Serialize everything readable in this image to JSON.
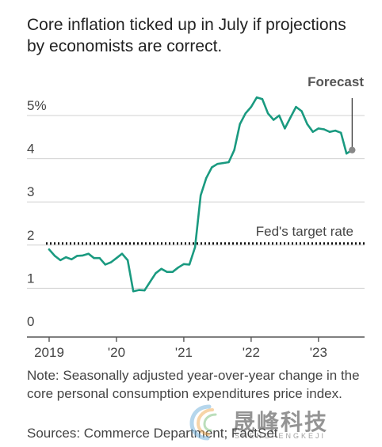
{
  "title": "Core inflation ticked up in July if projections by economists are correct.",
  "note": "Note: Seasonally adjusted year-over-year change in the core personal consumption expenditures price index.",
  "sources": "Sources: Commerce Department; FactSet",
  "watermark": {
    "text": "晟峰科技",
    "subtext": "SHENGFENGKEJI"
  },
  "colors": {
    "line": "#1a9a80",
    "forecast_point": "#888888",
    "target_line": "#111111",
    "grid": "#d0d0d0",
    "axis": "#555555",
    "text": "#444444"
  },
  "chart_data": {
    "type": "line",
    "title": "Core inflation ticked up in July if projections by economists are correct.",
    "xlabel": "",
    "ylabel": "",
    "y_tick_labels": [
      "0",
      "1",
      "2",
      "3",
      "4",
      "5%"
    ],
    "y_ticks": [
      0,
      1,
      2,
      3,
      4,
      5
    ],
    "ylim": [
      -0.3,
      5.5
    ],
    "x_tick_labels": [
      "2019",
      "'20",
      "'21",
      "'22",
      "'23"
    ],
    "x_ticks": [
      "2019-01",
      "2020-01",
      "2021-01",
      "2022-01",
      "2023-01"
    ],
    "grid": true,
    "series": [
      {
        "x": [
          "2019-01",
          "2019-02",
          "2019-03",
          "2019-04",
          "2019-05",
          "2019-06",
          "2019-07",
          "2019-08",
          "2019-09",
          "2019-10",
          "2019-11",
          "2019-12",
          "2020-01",
          "2020-02",
          "2020-03",
          "2020-04",
          "2020-05",
          "2020-06",
          "2020-07",
          "2020-08",
          "2020-09",
          "2020-10",
          "2020-11",
          "2020-12",
          "2021-01",
          "2021-02",
          "2021-03",
          "2021-04",
          "2021-05",
          "2021-06",
          "2021-07",
          "2021-08",
          "2021-09",
          "2021-10",
          "2021-11",
          "2021-12",
          "2022-01",
          "2022-02",
          "2022-03",
          "2022-04",
          "2022-05",
          "2022-06",
          "2022-07",
          "2022-08",
          "2022-09",
          "2022-10",
          "2022-11",
          "2022-12",
          "2023-01",
          "2023-02",
          "2023-03",
          "2023-04",
          "2023-05",
          "2023-06"
        ],
        "values": [
          1.9,
          1.75,
          1.65,
          1.72,
          1.67,
          1.75,
          1.76,
          1.8,
          1.7,
          1.7,
          1.55,
          1.6,
          1.7,
          1.8,
          1.65,
          0.93,
          0.96,
          0.95,
          1.15,
          1.35,
          1.45,
          1.38,
          1.38,
          1.48,
          1.56,
          1.55,
          1.95,
          3.15,
          3.55,
          3.8,
          3.88,
          3.9,
          3.92,
          4.2,
          4.8,
          5.05,
          5.2,
          5.42,
          5.38,
          5.05,
          4.9,
          5.0,
          4.7,
          4.95,
          5.2,
          5.1,
          4.8,
          4.62,
          4.7,
          4.68,
          4.62,
          4.65,
          4.6,
          4.12
        ]
      }
    ],
    "forecast": {
      "label": "Forecast",
      "x": "2023-07",
      "value": 4.2
    },
    "reference_line": {
      "label": "Fed's target rate",
      "value": 2.0,
      "style": "dotted"
    }
  }
}
